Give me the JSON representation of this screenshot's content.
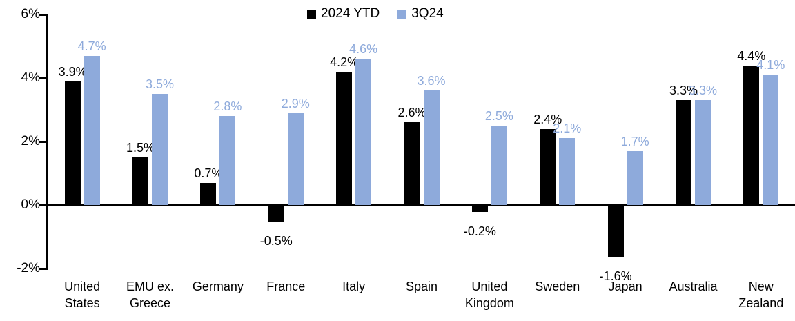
{
  "chart_data": {
    "type": "bar",
    "categories": [
      "United States",
      "EMU ex. Greece",
      "Germany",
      "France",
      "Italy",
      "Spain",
      "United Kingdom",
      "Sweden",
      "Japan",
      "Australia",
      "New Zealand"
    ],
    "series": [
      {
        "name": "2024 YTD",
        "color": "#000000",
        "label_color": "#000000",
        "values": [
          3.9,
          1.5,
          0.7,
          -0.5,
          4.2,
          2.6,
          -0.2,
          2.4,
          -1.6,
          3.3,
          4.4
        ],
        "labels": [
          "3.9%",
          "1.5%",
          "0.7%",
          "-0.5%",
          "4.2%",
          "2.6%",
          "-0.2%",
          "2.4%",
          "-1.6%",
          "3.3%",
          "4.4%"
        ]
      },
      {
        "name": "3Q24",
        "color": "#8EAADB",
        "label_color": "#8EAADB",
        "values": [
          4.7,
          3.5,
          2.8,
          2.9,
          4.6,
          3.6,
          2.5,
          2.1,
          1.7,
          3.3,
          4.1
        ],
        "labels": [
          "4.7%",
          "3.5%",
          "2.8%",
          "2.9%",
          "4.6%",
          "3.6%",
          "2.5%",
          "2.1%",
          "1.7%",
          "3.3%",
          "4.1%"
        ]
      }
    ],
    "ylim": [
      -2,
      6
    ],
    "yticks": [
      {
        "value": 6,
        "label": "6%"
      },
      {
        "value": 4,
        "label": "4%"
      },
      {
        "value": 2,
        "label": "2%"
      },
      {
        "value": 0,
        "label": "0%"
      },
      {
        "value": -2,
        "label": "-2%"
      }
    ],
    "grid": false,
    "legend_position": "top-center"
  }
}
